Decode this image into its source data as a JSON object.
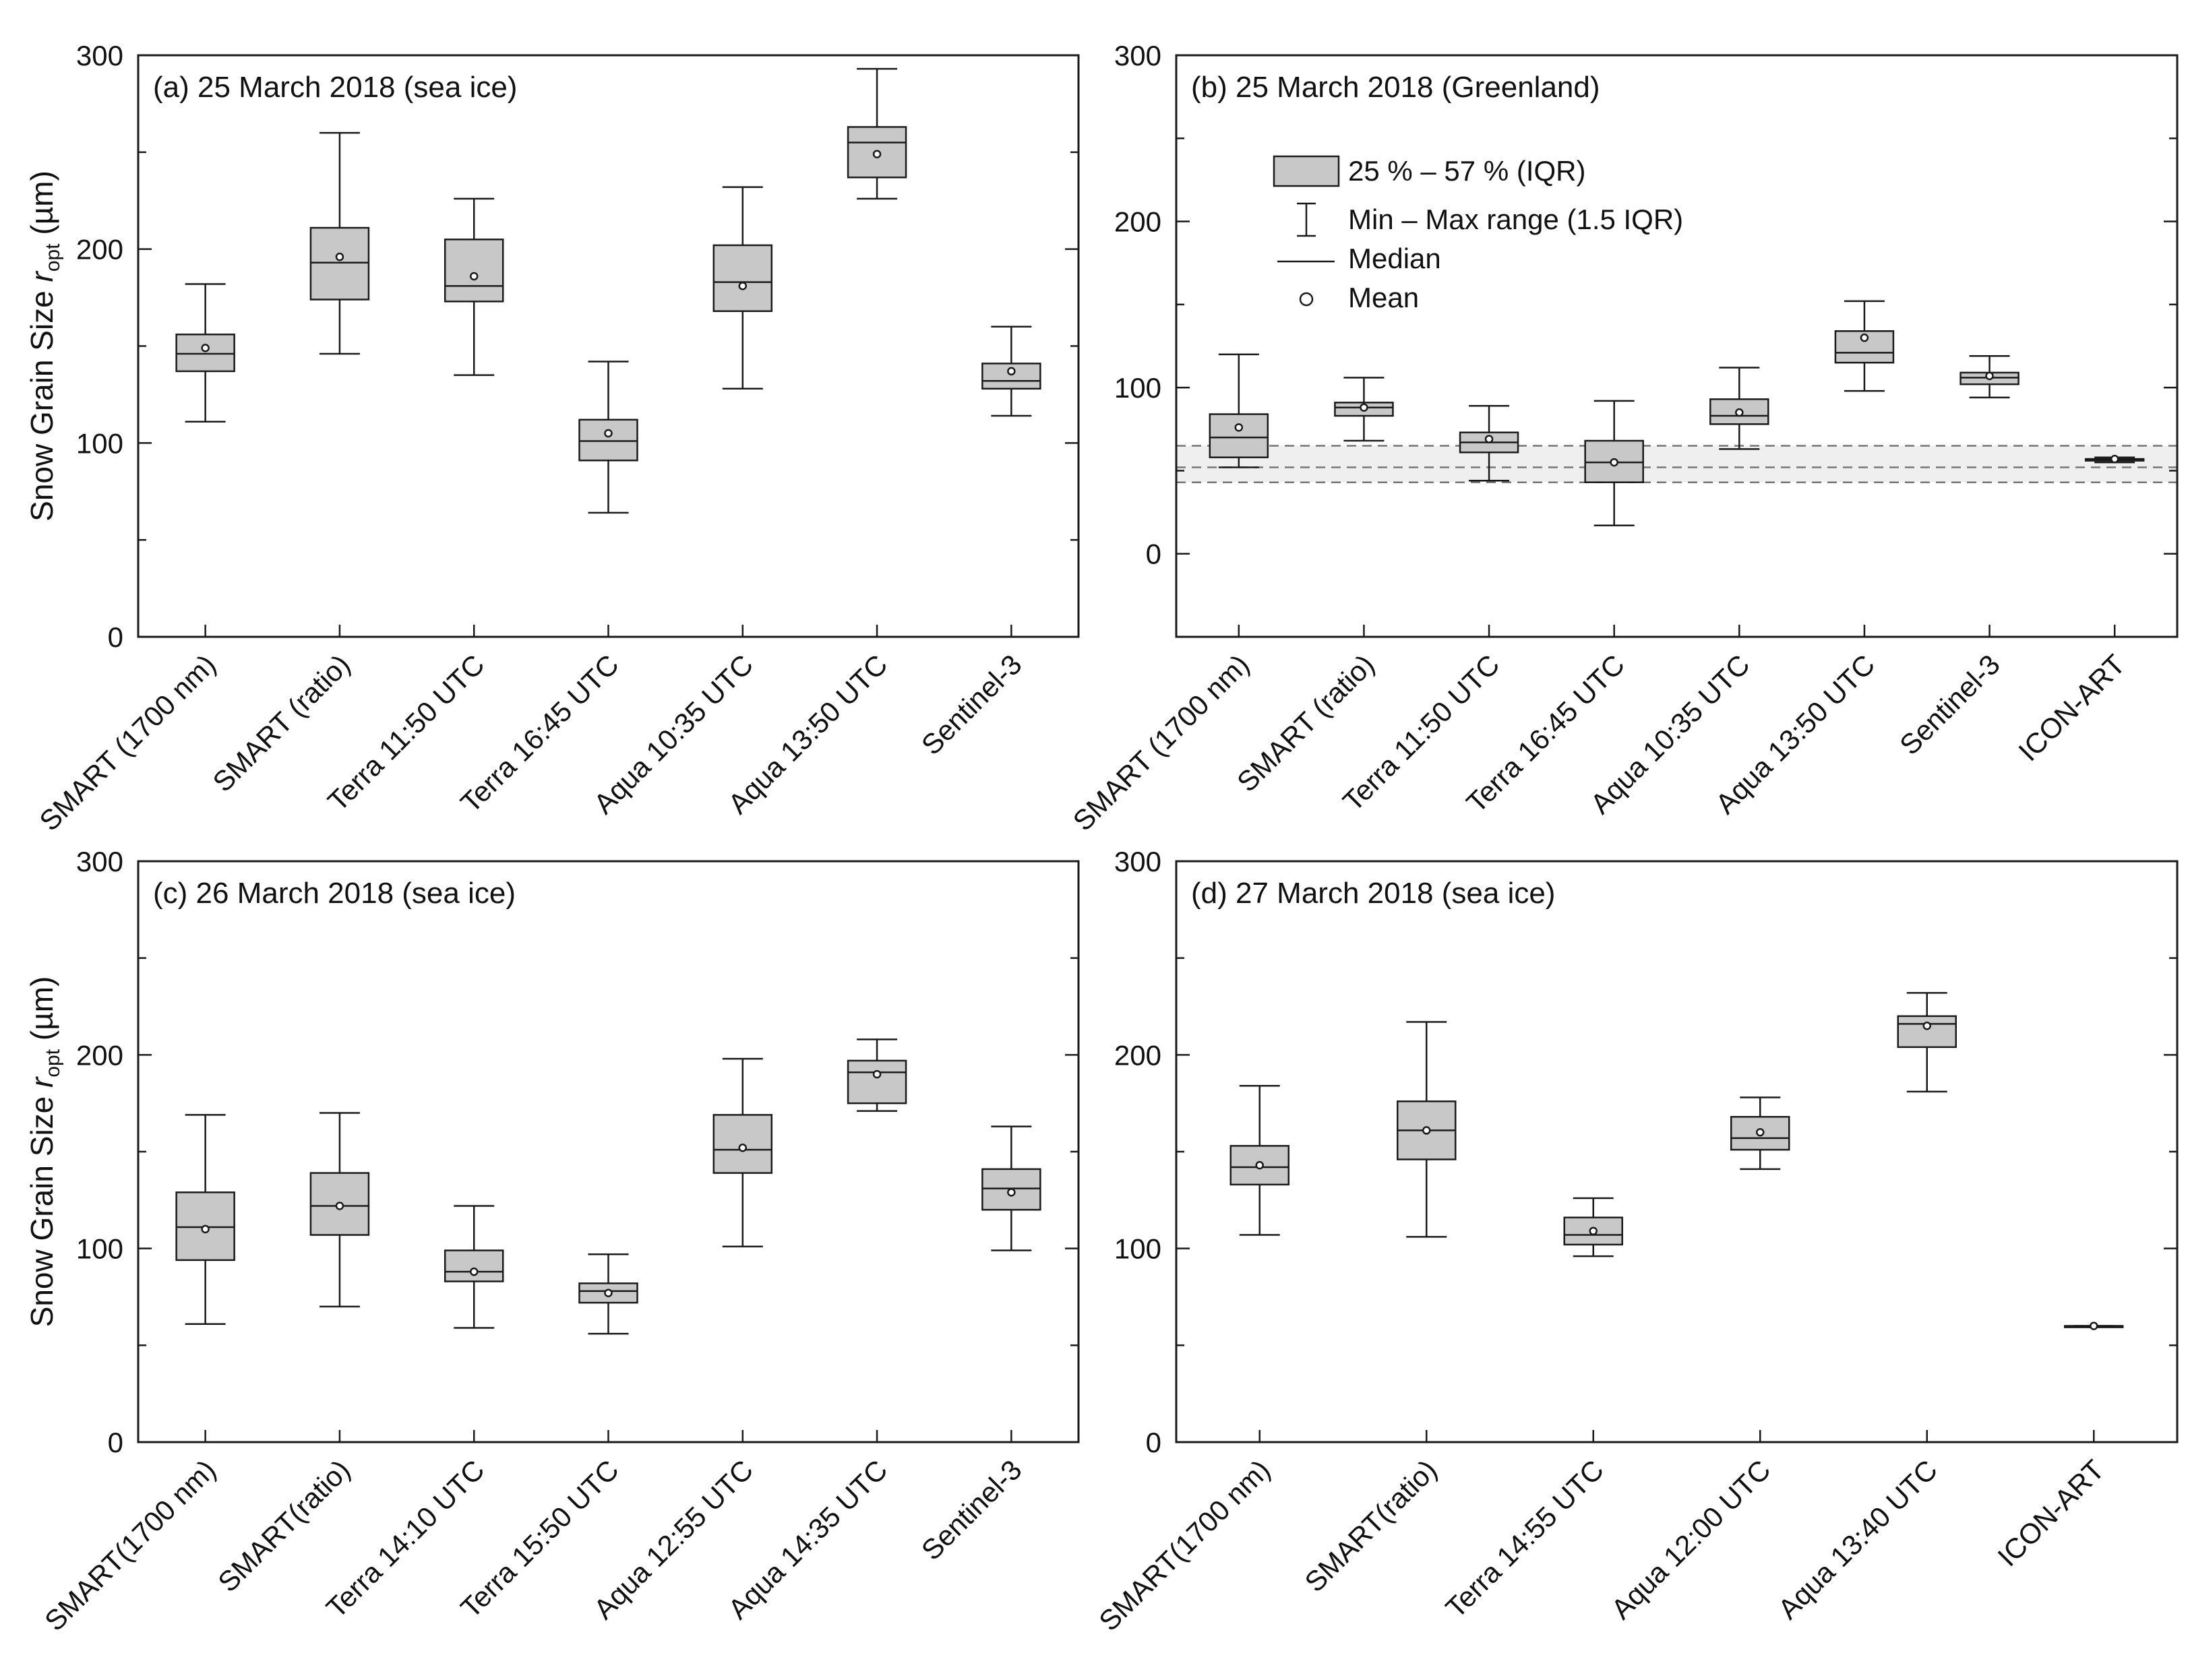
{
  "figure": {
    "ylabel_prefix": "Snow Grain Size ",
    "ylabel_var": "r",
    "ylabel_sub": "opt",
    "ylabel_unit": " (µm)"
  },
  "colors": {
    "box_fill": "#c8c8c8",
    "stroke": "#1a1a1a",
    "shade": "#efefef",
    "dash": "#777777"
  },
  "legend": {
    "iqr": "25 % – 57 % (IQR)",
    "range": "Min – Max range (1.5 IQR)",
    "median": "Median",
    "mean": "Mean"
  },
  "chart_data": [
    {
      "type": "box",
      "title": "(a) 25 March 2018 (sea ice)",
      "ylabel": "Snow Grain Size r_opt (µm)",
      "ylim": [
        0,
        300
      ],
      "yticks": [
        0,
        100,
        200,
        300
      ],
      "grid": false,
      "categories": [
        "SMART (1700 nm)",
        "SMART (ratio)",
        "Terra 11:50 UTC",
        "Terra 16:45 UTC",
        "Aqua 10:35 UTC",
        "Aqua 13:50 UTC",
        "Sentinel-3"
      ],
      "boxes": [
        {
          "min": 111,
          "q1": 137,
          "median": 146,
          "q3": 156,
          "max": 182,
          "mean": 149
        },
        {
          "min": 146,
          "q1": 174,
          "median": 193,
          "q3": 211,
          "max": 260,
          "mean": 196
        },
        {
          "min": 135,
          "q1": 173,
          "median": 181,
          "q3": 205,
          "max": 226,
          "mean": 186
        },
        {
          "min": 64,
          "q1": 91,
          "median": 101,
          "q3": 112,
          "max": 142,
          "mean": 105
        },
        {
          "min": 128,
          "q1": 168,
          "median": 183,
          "q3": 202,
          "max": 232,
          "mean": 181
        },
        {
          "min": 226,
          "q1": 237,
          "median": 255,
          "q3": 263,
          "max": 293,
          "mean": 249
        },
        {
          "min": 114,
          "q1": 128,
          "median": 132,
          "q3": 141,
          "max": 160,
          "mean": 137
        }
      ]
    },
    {
      "type": "box",
      "title": "(b) 25 March 2018 (Greenland)",
      "ylabel": "",
      "ylim": [
        -50,
        300
      ],
      "yticks": [
        0,
        100,
        200,
        300
      ],
      "grid": false,
      "legend_position": "upper-left",
      "reference_band": {
        "low": 43,
        "mid": 52,
        "high": 65
      },
      "categories": [
        "SMART (1700 nm)",
        "SMART (ratio)",
        "Terra 11:50 UTC",
        "Terra 16:45 UTC",
        "Aqua 10:35 UTC",
        "Aqua 13:50 UTC",
        "Sentinel-3",
        "ICON-ART"
      ],
      "boxes": [
        {
          "min": 52,
          "q1": 58,
          "median": 70,
          "q3": 84,
          "max": 120,
          "mean": 76
        },
        {
          "min": 68,
          "q1": 83,
          "median": 88,
          "q3": 91,
          "max": 106,
          "mean": 88
        },
        {
          "min": 44,
          "q1": 61,
          "median": 67,
          "q3": 73,
          "max": 89,
          "mean": 69
        },
        {
          "min": 17,
          "q1": 43,
          "median": 55,
          "q3": 68,
          "max": 92,
          "mean": 55
        },
        {
          "min": 63,
          "q1": 78,
          "median": 83,
          "q3": 93,
          "max": 112,
          "mean": 85
        },
        {
          "min": 98,
          "q1": 115,
          "median": 121,
          "q3": 134,
          "max": 152,
          "mean": 130
        },
        {
          "min": 94,
          "q1": 102,
          "median": 106,
          "q3": 109,
          "max": 119,
          "mean": 107
        },
        {
          "min": 55,
          "q1": 56,
          "median": 57,
          "q3": 57,
          "max": 58,
          "mean": 57
        }
      ]
    },
    {
      "type": "box",
      "title": "(c) 26 March 2018 (sea ice)",
      "ylabel": "Snow Grain Size r_opt (µm)",
      "ylim": [
        0,
        300
      ],
      "yticks": [
        0,
        100,
        200,
        300
      ],
      "grid": false,
      "categories": [
        "SMART(1700 nm)",
        "SMART(ratio)",
        "Terra 14:10 UTC",
        "Terra 15:50 UTC",
        "Aqua 12:55 UTC",
        "Aqua 14:35 UTC",
        "Sentinel-3"
      ],
      "boxes": [
        {
          "min": 61,
          "q1": 94,
          "median": 111,
          "q3": 129,
          "max": 169,
          "mean": 110
        },
        {
          "min": 70,
          "q1": 107,
          "median": 122,
          "q3": 139,
          "max": 170,
          "mean": 122
        },
        {
          "min": 59,
          "q1": 83,
          "median": 88,
          "q3": 99,
          "max": 122,
          "mean": 88
        },
        {
          "min": 56,
          "q1": 72,
          "median": 78,
          "q3": 82,
          "max": 97,
          "mean": 77
        },
        {
          "min": 101,
          "q1": 139,
          "median": 151,
          "q3": 169,
          "max": 198,
          "mean": 152
        },
        {
          "min": 171,
          "q1": 175,
          "median": 191,
          "q3": 197,
          "max": 208,
          "mean": 190
        },
        {
          "min": 99,
          "q1": 120,
          "median": 131,
          "q3": 141,
          "max": 163,
          "mean": 129
        }
      ]
    },
    {
      "type": "box",
      "title": "(d) 27 March 2018 (sea ice)",
      "ylabel": "",
      "ylim": [
        0,
        300
      ],
      "yticks": [
        0,
        100,
        200,
        300
      ],
      "grid": false,
      "categories": [
        "SMART(1700 nm)",
        "SMART(ratio)",
        "Terra 14:55 UTC",
        "Aqua 12:00 UTC",
        "Aqua 13:40 UTC",
        "ICON-ART"
      ],
      "boxes": [
        {
          "min": 107,
          "q1": 133,
          "median": 142,
          "q3": 153,
          "max": 184,
          "mean": 143
        },
        {
          "min": 106,
          "q1": 146,
          "median": 161,
          "q3": 176,
          "max": 217,
          "mean": 161
        },
        {
          "min": 96,
          "q1": 102,
          "median": 107,
          "q3": 116,
          "max": 126,
          "mean": 109
        },
        {
          "min": 141,
          "q1": 151,
          "median": 157,
          "q3": 168,
          "max": 178,
          "mean": 160
        },
        {
          "min": 181,
          "q1": 204,
          "median": 216,
          "q3": 220,
          "max": 232,
          "mean": 215
        },
        {
          "min": 60,
          "q1": 60,
          "median": 60,
          "q3": 60,
          "max": 60,
          "mean": 60
        }
      ]
    }
  ]
}
